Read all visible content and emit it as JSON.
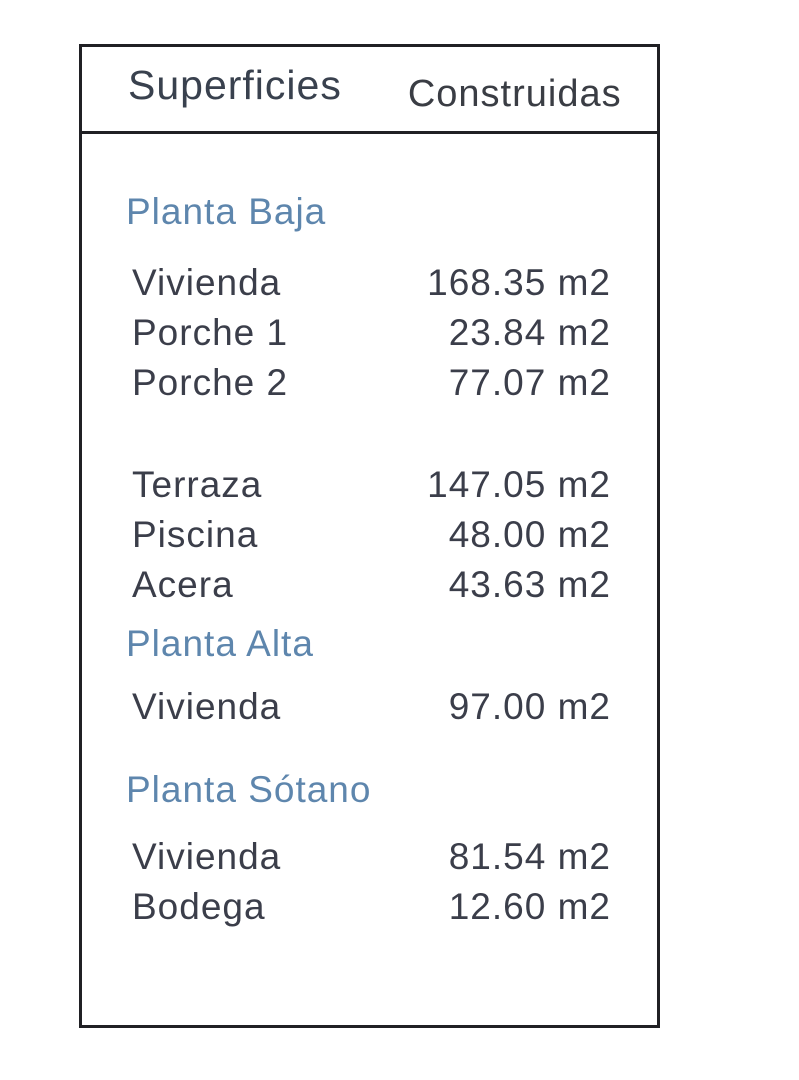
{
  "document": {
    "header": {
      "col_left": "Superficies",
      "col_right": "Construidas"
    },
    "sections": [
      {
        "heading": "Planta Baja",
        "groups": [
          [
            {
              "label": "Vivienda",
              "value": "168.35 m2"
            },
            {
              "label": "Porche 1",
              "value": "23.84 m2"
            },
            {
              "label": "Porche 2",
              "value": "77.07 m2"
            }
          ],
          [
            {
              "label": "Terraza",
              "value": "147.05 m2"
            },
            {
              "label": "Piscina",
              "value": "48.00 m2"
            },
            {
              "label": "Acera",
              "value": "43.63 m2"
            }
          ]
        ]
      },
      {
        "heading": "Planta Alta",
        "groups": [
          [
            {
              "label": "Vivienda",
              "value": "97.00 m2"
            }
          ]
        ]
      },
      {
        "heading": "Planta Sótano",
        "groups": [
          [
            {
              "label": "Vivienda",
              "value": "81.54 m2"
            },
            {
              "label": "Bodega",
              "value": "12.60 m2"
            }
          ]
        ]
      }
    ],
    "unit": "m2",
    "colors": {
      "heading_blue": "#5e86ad",
      "body_text": "#3b3e4a",
      "border": "#202024"
    }
  }
}
